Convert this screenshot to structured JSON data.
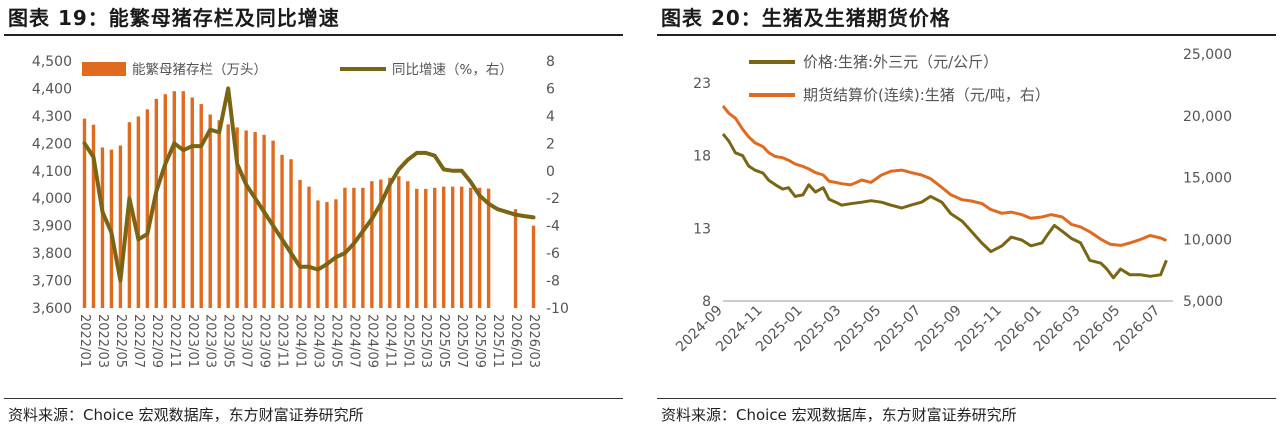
{
  "panels": [
    {
      "title": "图表 19：能繁母猪存栏及同比增速",
      "source": "资料来源：Choice 宏观数据库，东方财富证券研究所"
    },
    {
      "title": "图表 20：生猪及生猪期货价格",
      "source": "资料来源：Choice 宏观数据库，东方财富证券研究所"
    }
  ],
  "chart_data": [
    {
      "type": "bar",
      "title": "",
      "x": [
        "2022/01",
        "2022/02",
        "2022/03",
        "2022/04",
        "2022/05",
        "2022/06",
        "2022/07",
        "2022/08",
        "2022/09",
        "2022/10",
        "2022/11",
        "2022/12",
        "2023/01",
        "2023/02",
        "2023/03",
        "2023/04",
        "2023/05",
        "2023/06",
        "2023/07",
        "2023/08",
        "2023/09",
        "2023/10",
        "2023/11",
        "2023/12",
        "2024/01",
        "2024/02",
        "2024/03",
        "2024/04",
        "2024/05",
        "2024/06",
        "2024/07",
        "2024/08",
        "2024/09",
        "2024/10",
        "2024/11",
        "2024/12",
        "2025/01",
        "2025/02",
        "2025/03",
        "2025/04",
        "2025/05",
        "2025/06",
        "2025/07",
        "2025/08",
        "2025/09",
        "2025/10",
        "2025/11",
        "2025/12",
        "2026/01",
        "2026/02",
        "2026/03"
      ],
      "x_tick_labels": [
        "2022/01",
        "2022/03",
        "2022/05",
        "2022/07",
        "2022/09",
        "2022/11",
        "2023/01",
        "2023/03",
        "2023/05",
        "2023/07",
        "2023/09",
        "2023/11",
        "2024/01",
        "2024/03",
        "2024/05",
        "2024/07",
        "2024/09",
        "2024/11",
        "2025/01",
        "2025/03",
        "2025/05",
        "2025/07",
        "2025/09",
        "2025/11",
        "2026/01",
        "2026/03"
      ],
      "series": [
        {
          "name": "能繁母猪存栏（万头）",
          "type": "bar",
          "axis": "left",
          "color": "#e06a1f",
          "values": [
            4290,
            4268,
            4185,
            4177,
            4192,
            4277,
            4298,
            4324,
            4362,
            4379,
            4390,
            4390,
            4367,
            4343,
            4305,
            4284,
            4269,
            4258,
            4247,
            4241,
            4231,
            4210,
            4158,
            4142,
            4067,
            4042,
            3992,
            3986,
            3996,
            4038,
            4038,
            4038,
            4062,
            4068,
            4074,
            4080,
            4062,
            4034,
            4034,
            4038,
            4042,
            4042,
            4042,
            4038,
            4038,
            4035,
            null,
            null,
            3960,
            null,
            3900
          ]
        },
        {
          "name": "同比增速（%，右）",
          "type": "line",
          "axis": "right",
          "color": "#7a6514",
          "values": [
            2.0,
            1.0,
            -3.0,
            -4.5,
            -8.0,
            -2.0,
            -5.0,
            -4.6,
            -1.5,
            0.5,
            2.0,
            1.5,
            1.8,
            1.8,
            3.0,
            2.8,
            6.0,
            0.5,
            -1.0,
            -2.0,
            -3.0,
            -4.0,
            -5.0,
            -6.0,
            -7.0,
            -7.0,
            -7.2,
            -6.8,
            -6.3,
            -6.0,
            -5.3,
            -4.4,
            -3.5,
            -2.4,
            -1.0,
            0.1,
            0.8,
            1.3,
            1.3,
            1.1,
            0.1,
            0.0,
            0.0,
            -0.8,
            -1.8,
            -2.4,
            -2.8,
            -3.0,
            -3.2,
            -3.3,
            -3.4
          ]
        }
      ],
      "y_left": {
        "min": 3600,
        "max": 4500,
        "ticks": [
          "3,600",
          "3,700",
          "3,800",
          "3,900",
          "4,000",
          "4,100",
          "4,200",
          "4,300",
          "4,400",
          "4,500"
        ]
      },
      "y_right": {
        "min": -10,
        "max": 8,
        "ticks": [
          "-10",
          "-8",
          "-6",
          "-4",
          "-2",
          "0",
          "2",
          "4",
          "6",
          "8"
        ]
      },
      "legend_position": "top",
      "grid": false
    },
    {
      "type": "line",
      "title": "",
      "x_tick_labels": [
        "2024-09",
        "2024-11",
        "2025-01",
        "2025-03",
        "2025-05",
        "2025-07",
        "2025-09",
        "2025-11",
        "2026-01",
        "2026-03",
        "2026-05",
        "2026-07"
      ],
      "series": [
        {
          "name": "价格:生猪:外三元（元/公斤）",
          "axis": "left",
          "color": "#7a6514",
          "x": [
            "2024-09-01",
            "2024-09-10",
            "2024-09-20",
            "2024-10-01",
            "2024-10-10",
            "2024-10-20",
            "2024-11-01",
            "2024-11-10",
            "2024-11-20",
            "2024-12-01",
            "2024-12-10",
            "2024-12-20",
            "2025-01-01",
            "2025-01-10",
            "2025-01-20",
            "2025-02-01",
            "2025-02-10",
            "2025-02-20",
            "2025-03-01",
            "2025-03-15",
            "2025-04-01",
            "2025-04-15",
            "2025-05-01",
            "2025-05-15",
            "2025-06-01",
            "2025-06-15",
            "2025-07-01",
            "2025-07-15",
            "2025-08-01",
            "2025-08-15",
            "2025-09-01",
            "2025-09-15",
            "2025-10-01",
            "2025-10-15",
            "2025-11-01",
            "2025-11-15",
            "2025-12-01",
            "2025-12-15",
            "2026-01-01",
            "2026-01-10",
            "2026-01-20",
            "2026-02-01",
            "2026-02-15",
            "2026-03-01",
            "2026-03-15",
            "2026-04-01",
            "2026-04-10",
            "2026-04-20",
            "2026-05-01",
            "2026-05-15",
            "2026-06-01",
            "2026-06-15",
            "2026-07-01",
            "2026-07-10"
          ],
          "y": [
            19.5,
            19.0,
            18.2,
            18.0,
            17.3,
            17.0,
            16.8,
            16.3,
            16.0,
            15.7,
            15.8,
            15.2,
            15.3,
            16.0,
            15.5,
            15.8,
            15.0,
            14.8,
            14.6,
            14.7,
            14.8,
            14.9,
            14.8,
            14.6,
            14.4,
            14.6,
            14.8,
            15.2,
            14.8,
            14.0,
            13.5,
            12.8,
            12.0,
            11.4,
            11.8,
            12.4,
            12.2,
            11.8,
            12.0,
            12.6,
            13.2,
            12.8,
            12.3,
            12.0,
            10.8,
            10.6,
            10.2,
            9.6,
            10.2,
            9.8,
            9.8,
            9.7,
            9.8,
            10.8
          ]
        },
        {
          "name": "期货结算价(连续):生猪（元/吨，右）",
          "axis": "right",
          "color": "#e06a1f",
          "x": [
            "2024-09-01",
            "2024-09-10",
            "2024-09-20",
            "2024-10-01",
            "2024-10-10",
            "2024-10-20",
            "2024-11-01",
            "2024-11-10",
            "2024-11-20",
            "2024-12-01",
            "2024-12-10",
            "2024-12-20",
            "2025-01-01",
            "2025-01-10",
            "2025-01-20",
            "2025-02-01",
            "2025-02-10",
            "2025-02-20",
            "2025-03-01",
            "2025-03-15",
            "2025-04-01",
            "2025-04-15",
            "2025-05-01",
            "2025-05-15",
            "2025-06-01",
            "2025-06-15",
            "2025-07-01",
            "2025-07-15",
            "2025-08-01",
            "2025-08-15",
            "2025-09-01",
            "2025-09-15",
            "2025-10-01",
            "2025-10-15",
            "2025-11-01",
            "2025-11-15",
            "2025-12-01",
            "2025-12-15",
            "2026-01-01",
            "2026-01-15",
            "2026-02-01",
            "2026-02-15",
            "2026-03-01",
            "2026-03-15",
            "2026-04-01",
            "2026-04-15",
            "2026-05-01",
            "2026-05-15",
            "2026-06-01",
            "2026-06-15",
            "2026-07-01",
            "2026-07-10"
          ],
          "y": [
            20800,
            20200,
            19800,
            18900,
            18300,
            17800,
            17500,
            17000,
            16700,
            16600,
            16400,
            16100,
            15900,
            15700,
            15400,
            15200,
            14700,
            14600,
            14500,
            14400,
            14800,
            14600,
            15200,
            15500,
            15600,
            15400,
            15200,
            14900,
            14200,
            13600,
            13200,
            13100,
            12900,
            12400,
            12100,
            12200,
            12000,
            11700,
            11800,
            12000,
            11800,
            11200,
            11000,
            10600,
            10000,
            9600,
            9500,
            9700,
            10000,
            10300,
            10100,
            9900
          ]
        }
      ],
      "y_left": {
        "min": 8,
        "max": 25,
        "ticks": [
          "8",
          "13",
          "18",
          "23"
        ]
      },
      "y_right": {
        "min": 5000,
        "max": 25000,
        "ticks": [
          "5,000",
          "10,000",
          "15,000",
          "20,000",
          "25,000"
        ]
      },
      "legend_position": "top-left",
      "grid": false
    }
  ]
}
